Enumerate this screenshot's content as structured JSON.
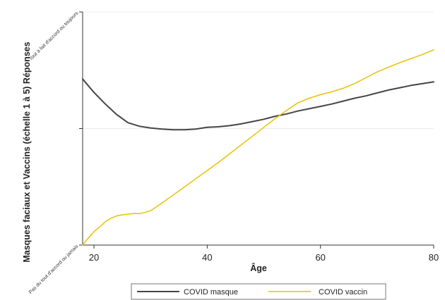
{
  "chart_data": {
    "type": "line",
    "xlabel": "Âge",
    "ylabel": "Masques faciaux et  Vaccins (échelle 1 à 5) Réponses",
    "xlim": [
      18,
      80
    ],
    "ylim": [
      1,
      5
    ],
    "x_ticks": [
      {
        "value": 20,
        "label": "20"
      },
      {
        "value": 40,
        "label": "40"
      },
      {
        "value": 60,
        "label": "60"
      },
      {
        "value": 80,
        "label": "80"
      }
    ],
    "y_ticks": [
      {
        "value": 1,
        "label": "Pas du tout d'accord ou jamais"
      },
      {
        "value": 3,
        "label": ""
      },
      {
        "value": 5,
        "label": "Tout à fait d'accord ou toujours"
      }
    ],
    "grid": "horizontal",
    "legend_position": "bottom",
    "series": [
      {
        "name": "COVID masque",
        "color": "#454545",
        "x": [
          18,
          20,
          22,
          24,
          26,
          28,
          30,
          32,
          34,
          36,
          38,
          40,
          42,
          44,
          46,
          48,
          50,
          52,
          54,
          56,
          58,
          60,
          62,
          64,
          66,
          68,
          70,
          72,
          74,
          76,
          78,
          80
        ],
        "y": [
          3.85,
          3.62,
          3.42,
          3.24,
          3.1,
          3.04,
          3.01,
          2.99,
          2.98,
          2.98,
          2.99,
          3.02,
          3.03,
          3.05,
          3.08,
          3.12,
          3.16,
          3.21,
          3.25,
          3.3,
          3.34,
          3.38,
          3.42,
          3.47,
          3.52,
          3.56,
          3.61,
          3.66,
          3.7,
          3.74,
          3.77,
          3.8
        ]
      },
      {
        "name": "COVID vaccin",
        "color": "#e8c200",
        "x": [
          18,
          18.5,
          19,
          20,
          21,
          22,
          23,
          24,
          25,
          26,
          27,
          28,
          29,
          30,
          32,
          34,
          36,
          38,
          40,
          42,
          44,
          46,
          48,
          50,
          52,
          54,
          56,
          58,
          60,
          62,
          64,
          66,
          68,
          70,
          72,
          74,
          76,
          78,
          80
        ],
        "y": [
          1.0,
          1.06,
          1.12,
          1.23,
          1.31,
          1.4,
          1.46,
          1.5,
          1.52,
          1.53,
          1.54,
          1.54,
          1.56,
          1.59,
          1.72,
          1.86,
          2.0,
          2.14,
          2.28,
          2.42,
          2.57,
          2.72,
          2.87,
          3.02,
          3.17,
          3.31,
          3.44,
          3.52,
          3.58,
          3.63,
          3.69,
          3.77,
          3.87,
          3.97,
          4.05,
          4.13,
          4.2,
          4.27,
          4.35
        ]
      }
    ]
  }
}
